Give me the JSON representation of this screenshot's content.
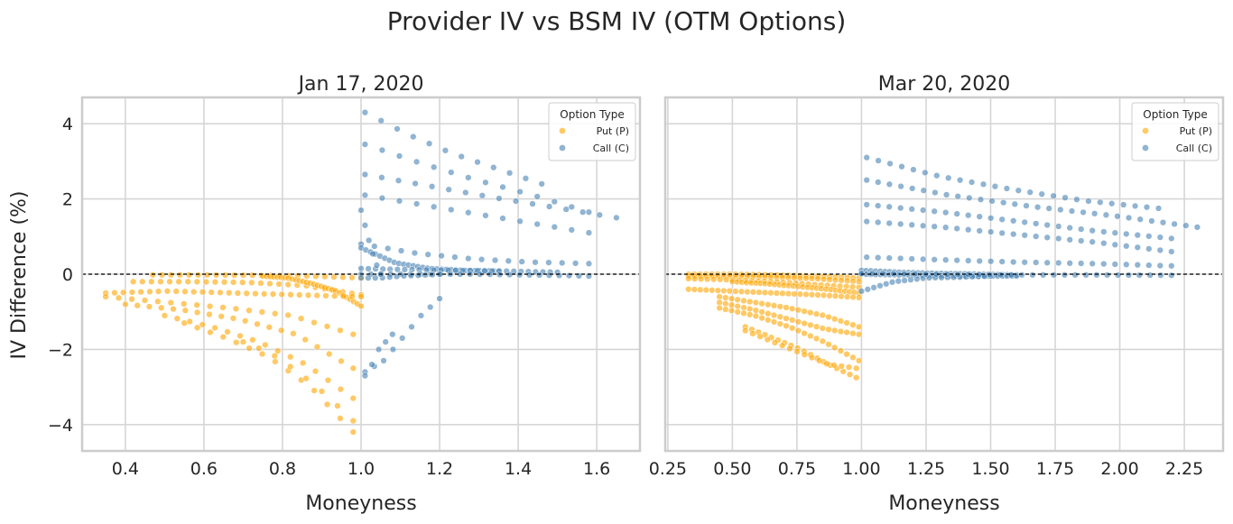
{
  "chart_data": {
    "title": "Provider IV vs BSM IV (OTM Options)",
    "ylabel": "IV Difference (%)",
    "colors": {
      "put": "#ffa500",
      "call": "#4682b4"
    },
    "panels": [
      {
        "type": "scatter",
        "title": "Jan 17, 2020",
        "xlabel": "Moneyness",
        "xlim": [
          0.29,
          1.71
        ],
        "ylim": [
          -4.7,
          4.7
        ],
        "xticks": [
          "0.4",
          "0.6",
          "0.8",
          "1.0",
          "1.2",
          "1.4",
          "1.6"
        ],
        "xtick_values": [
          0.4,
          0.6,
          0.8,
          1.0,
          1.2,
          1.4,
          1.6
        ],
        "yticks": [
          "−4",
          "−2",
          "0",
          "2",
          "4"
        ],
        "ytick_values": [
          -4,
          -2,
          0,
          2,
          4
        ],
        "grid": true,
        "reference_line_y": 0,
        "legend": {
          "title": "Option Type",
          "placement": "top-right",
          "entries": [
            "Put (P)",
            "Call (C)"
          ]
        },
        "series": [
          {
            "name": "Put (P)",
            "curves": [
              {
                "x_range": [
                  0.47,
                  1.0
                ],
                "y": [
                  -0.02,
                  -0.02,
                  -0.03,
                  -0.05,
                  -0.1
                ],
                "n": 24
              },
              {
                "x_range": [
                  0.42,
                  1.0
                ],
                "y": [
                  -0.2,
                  -0.2,
                  -0.22,
                  -0.3,
                  -0.55
                ],
                "n": 26
              },
              {
                "x_range": [
                  0.75,
                  1.0
                ],
                "y": [
                  -0.05,
                  -0.1,
                  -0.25,
                  -0.45,
                  -0.85
                ],
                "n": 28
              },
              {
                "x_range": [
                  0.35,
                  1.0
                ],
                "y": [
                  -0.5,
                  -0.45,
                  -0.5,
                  -0.55,
                  -0.6
                ],
                "n": 30
              },
              {
                "x_range": [
                  0.35,
                  0.98
                ],
                "y": [
                  -0.6,
                  -0.75,
                  -0.9,
                  -1.1,
                  -1.6
                ],
                "n": 20
              },
              {
                "x_range": [
                  0.4,
                  0.98
                ],
                "y": [
                  -0.8,
                  -0.95,
                  -1.2,
                  -1.6,
                  -2.5
                ],
                "n": 20
              },
              {
                "x_range": [
                  0.5,
                  0.98
                ],
                "y": [
                  -1.1,
                  -1.4,
                  -1.8,
                  -2.4,
                  -3.3
                ],
                "n": 16
              },
              {
                "x_range": [
                  0.55,
                  0.98
                ],
                "y": [
                  -1.3,
                  -1.7,
                  -2.2,
                  -3.0,
                  -4.2
                ],
                "n": 14
              },
              {
                "x_range": [
                  0.7,
                  0.98
                ],
                "y": [
                  -1.8,
                  -2.1,
                  -2.6,
                  -3.2,
                  -3.9
                ],
                "n": 8
              }
            ]
          },
          {
            "name": "Call (C)",
            "curves": [
              {
                "x_range": [
                  1.01,
                  1.46
                ],
                "y": [
                  4.3,
                  3.7,
                  3.2,
                  2.8,
                  2.4
                ],
                "n": 12
              },
              {
                "x_range": [
                  1.01,
                  1.58
                ],
                "y": [
                  3.45,
                  2.95,
                  2.5,
                  2.1,
                  1.65
                ],
                "n": 14
              },
              {
                "x_range": [
                  1.01,
                  1.65
                ],
                "y": [
                  2.65,
                  2.35,
                  2.05,
                  1.78,
                  1.5
                ],
                "n": 16
              },
              {
                "x_range": [
                  1.01,
                  1.58
                ],
                "y": [
                  2.1,
                  1.85,
                  1.6,
                  1.35,
                  1.1
                ],
                "n": 14
              },
              {
                "x_range": [
                  1.0,
                  1.58
                ],
                "y": [
                  0.8,
                  0.55,
                  0.4,
                  0.32,
                  0.28
                ],
                "n": 18
              },
              {
                "x_range": [
                  1.0,
                  1.35
                ],
                "y": [
                  0.7,
                  0.3,
                  0.15,
                  0.1,
                  0.08
                ],
                "n": 30
              },
              {
                "x_range": [
                  1.0,
                  1.5
                ],
                "y": [
                  0.15,
                  0.12,
                  0.1,
                  0.08,
                  0.05
                ],
                "n": 28
              },
              {
                "x_range": [
                  1.0,
                  1.58
                ],
                "y": [
                  0.0,
                  0.0,
                  0.0,
                  -0.02,
                  -0.05
                ],
                "n": 24
              },
              {
                "x_range": [
                  1.0,
                  1.2
                ],
                "y": [
                  -0.1,
                  -0.1,
                  -0.05,
                  -0.03,
                  0.0
                ],
                "n": 12
              },
              {
                "x_range": [
                  1.0,
                  1.05
                ],
                "y": [
                  1.7,
                  1.2,
                  0.7,
                  0.3,
                  0.0
                ],
                "n": 6
              },
              {
                "x_range": [
                  1.01,
                  1.2
                ],
                "y": [
                  -2.6,
                  -2.3,
                  -1.7,
                  -1.1,
                  -0.65
                ],
                "n": 9
              },
              {
                "x_range": [
                  1.01,
                  1.08
                ],
                "y": [
                  -2.7,
                  -2.4,
                  -2.0,
                  -1.8,
                  -1.6
                ],
                "n": 5
              }
            ]
          }
        ]
      },
      {
        "type": "scatter",
        "title": "Mar 20, 2020",
        "xlabel": "Moneyness",
        "xlim": [
          0.24,
          2.4
        ],
        "ylim": [
          -4.7,
          4.7
        ],
        "xticks": [
          "0.25",
          "0.50",
          "0.75",
          "1.00",
          "1.25",
          "1.50",
          "1.75",
          "2.00",
          "2.25"
        ],
        "xtick_values": [
          0.25,
          0.5,
          0.75,
          1.0,
          1.25,
          1.5,
          1.75,
          2.0,
          2.25
        ],
        "yticks": [],
        "ytick_values": [
          -4,
          -2,
          0,
          2,
          4
        ],
        "grid": true,
        "reference_line_y": 0,
        "legend": {
          "title": "Option Type",
          "placement": "top-right",
          "entries": [
            "Put (P)",
            "Call (C)"
          ]
        },
        "series": [
          {
            "name": "Put (P)",
            "curves": [
              {
                "x_range": [
                  0.33,
                  0.99
                ],
                "y": [
                  0.0,
                  0.0,
                  -0.02,
                  -0.05,
                  -0.1
                ],
                "n": 30
              },
              {
                "x_range": [
                  0.33,
                  0.99
                ],
                "y": [
                  -0.05,
                  -0.05,
                  -0.08,
                  -0.12,
                  -0.2
                ],
                "n": 30
              },
              {
                "x_range": [
                  0.33,
                  0.99
                ],
                "y": [
                  -0.12,
                  -0.15,
                  -0.2,
                  -0.28,
                  -0.35
                ],
                "n": 28
              },
              {
                "x_range": [
                  0.5,
                  0.99
                ],
                "y": [
                  -0.2,
                  -0.25,
                  -0.32,
                  -0.4,
                  -0.5
                ],
                "n": 28
              },
              {
                "x_range": [
                  0.33,
                  0.99
                ],
                "y": [
                  -0.4,
                  -0.45,
                  -0.5,
                  -0.55,
                  -0.62
                ],
                "n": 30
              },
              {
                "x_range": [
                  0.45,
                  0.99
                ],
                "y": [
                  -0.6,
                  -0.75,
                  -0.9,
                  -1.1,
                  -1.4
                ],
                "n": 24
              },
              {
                "x_range": [
                  0.45,
                  0.99
                ],
                "y": [
                  -0.75,
                  -0.95,
                  -1.2,
                  -1.45,
                  -1.6
                ],
                "n": 24
              },
              {
                "x_range": [
                  0.45,
                  0.99
                ],
                "y": [
                  -0.9,
                  -1.1,
                  -1.4,
                  -1.8,
                  -2.3
                ],
                "n": 24
              },
              {
                "x_range": [
                  0.55,
                  0.98
                ],
                "y": [
                  -1.4,
                  -1.7,
                  -2.0,
                  -2.4,
                  -2.75
                ],
                "n": 18
              },
              {
                "x_range": [
                  0.55,
                  0.98
                ],
                "y": [
                  -1.5,
                  -1.8,
                  -2.1,
                  -2.4,
                  -2.5
                ],
                "n": 16
              }
            ]
          },
          {
            "name": "Call (C)",
            "curves": [
              {
                "x_range": [
                  1.02,
                  2.15
                ],
                "y": [
                  3.1,
                  2.6,
                  2.25,
                  1.95,
                  1.75
                ],
                "n": 26
              },
              {
                "x_range": [
                  1.02,
                  2.3
                ],
                "y": [
                  2.5,
                  2.1,
                  1.8,
                  1.55,
                  1.25
                ],
                "n": 30
              },
              {
                "x_range": [
                  1.02,
                  2.2
                ],
                "y": [
                  1.85,
                  1.65,
                  1.4,
                  1.15,
                  0.95
                ],
                "n": 28
              },
              {
                "x_range": [
                  1.02,
                  2.2
                ],
                "y": [
                  1.4,
                  1.25,
                  1.05,
                  0.85,
                  0.6
                ],
                "n": 28
              },
              {
                "x_range": [
                  1.02,
                  2.2
                ],
                "y": [
                  0.45,
                  0.38,
                  0.32,
                  0.28,
                  0.22
                ],
                "n": 28
              },
              {
                "x_range": [
                  1.0,
                  1.6
                ],
                "y": [
                  0.1,
                  0.05,
                  0.02,
                  0.0,
                  -0.02
                ],
                "n": 34
              },
              {
                "x_range": [
                  1.0,
                  1.6
                ],
                "y": [
                  0.0,
                  -0.02,
                  -0.04,
                  -0.05,
                  -0.05
                ],
                "n": 34
              },
              {
                "x_range": [
                  1.0,
                  1.5
                ],
                "y": [
                  -0.45,
                  -0.2,
                  -0.1,
                  -0.08,
                  -0.05
                ],
                "n": 22
              },
              {
                "x_range": [
                  1.0,
                  2.2
                ],
                "y": [
                  0.02,
                  0.0,
                  -0.02,
                  -0.02,
                  -0.03
                ],
                "n": 30
              }
            ]
          }
        ]
      }
    ]
  }
}
